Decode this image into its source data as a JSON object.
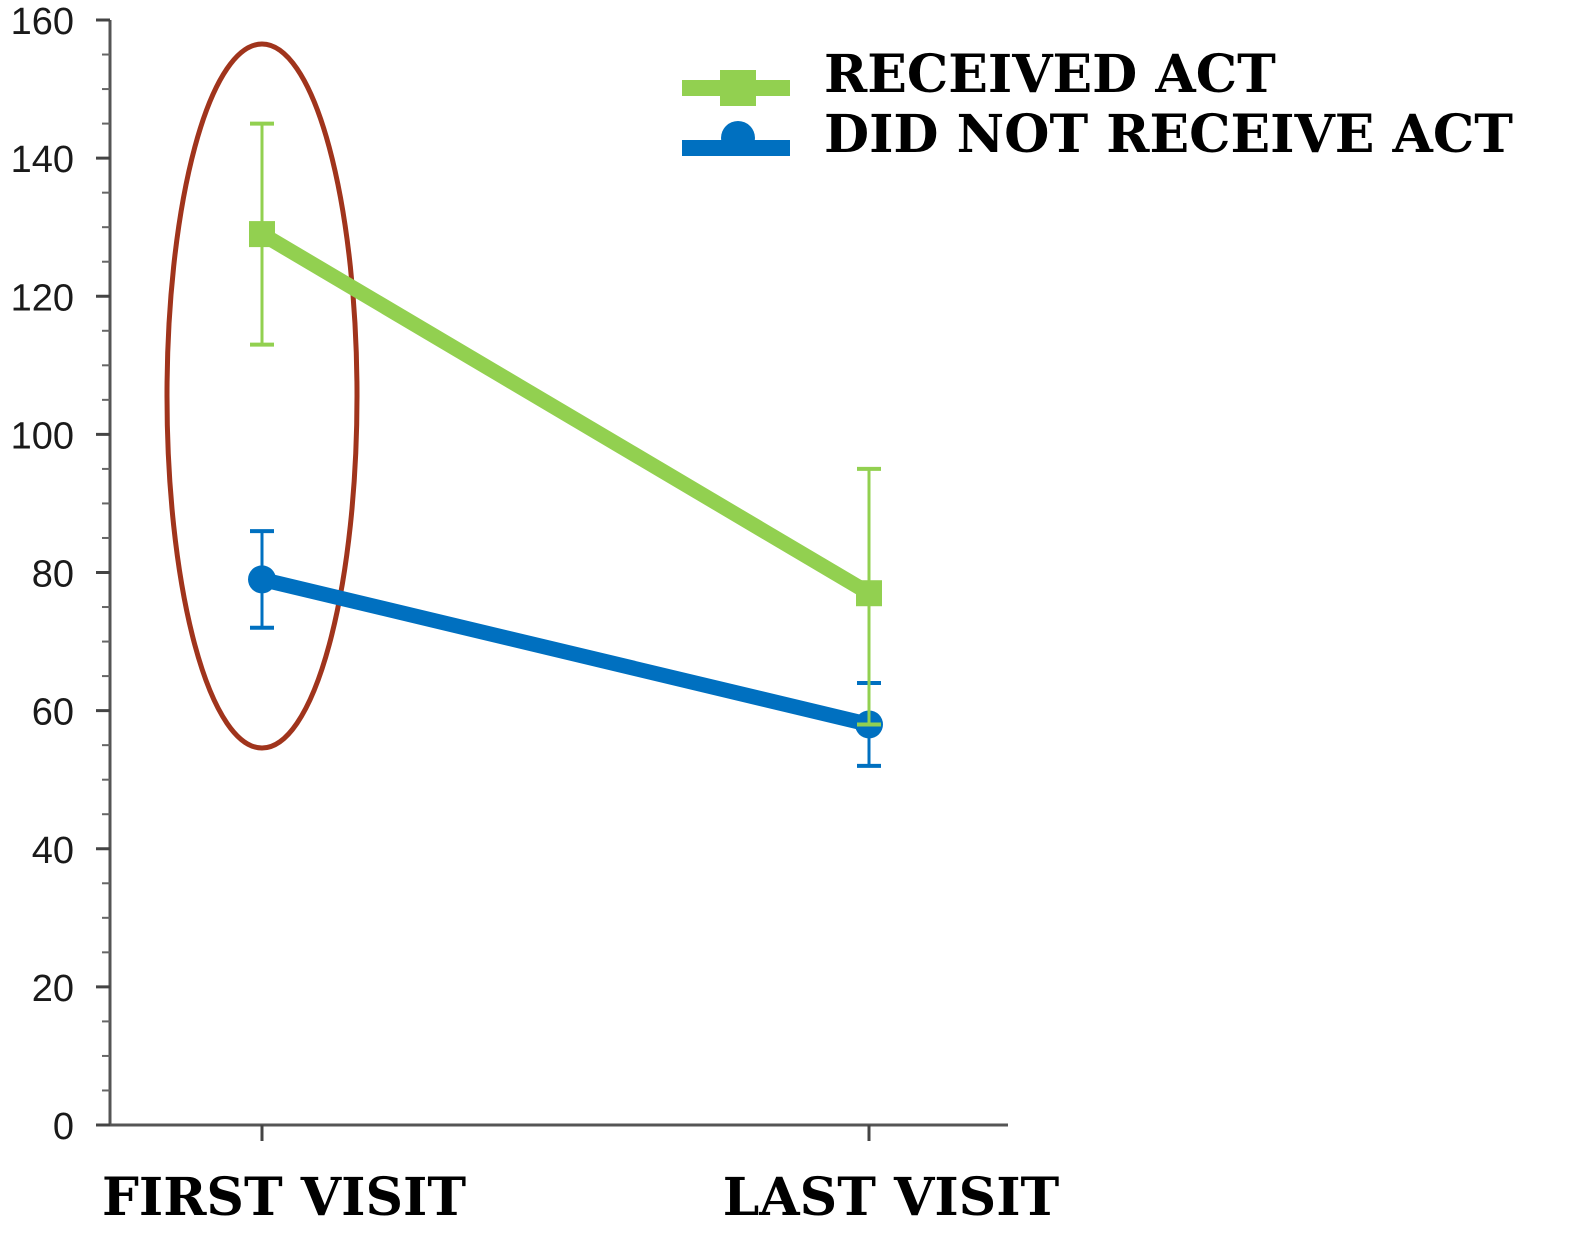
{
  "chart_data": {
    "type": "line",
    "categories": [
      "FIRST VISIT",
      "LAST VISIT"
    ],
    "ylim": [
      0,
      160
    ],
    "yticks": [
      0,
      20,
      40,
      60,
      80,
      100,
      120,
      140,
      160
    ],
    "grid": false,
    "legend_placement": "top-right",
    "series": [
      {
        "name": "RECEIVED ACT",
        "color": "#92d050",
        "marker": "square",
        "values": [
          129,
          77
        ],
        "error_low": [
          113,
          58
        ],
        "error_high": [
          145,
          95
        ]
      },
      {
        "name": "DID NOT RECEIVE ACT",
        "color": "#0070c0",
        "marker": "circle",
        "values": [
          79,
          58
        ],
        "error_low": [
          72,
          52
        ],
        "error_high": [
          86,
          64
        ]
      }
    ],
    "annotation": {
      "shape": "ellipse",
      "target_category": "FIRST VISIT",
      "color": "#a0341c"
    }
  }
}
